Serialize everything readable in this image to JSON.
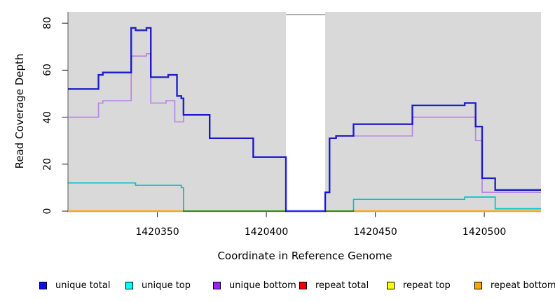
{
  "chart_data": {
    "type": "line",
    "subtype": "step-coverage",
    "title": "",
    "xlabel": "Coordinate in Reference Genome",
    "ylabel": "Read Coverage Depth",
    "x_ticks": [
      1420350,
      1420400,
      1420450,
      1420500
    ],
    "y_ticks": [
      0,
      20,
      40,
      60,
      80
    ],
    "x_range": [
      1420309,
      1420526
    ],
    "y_range": [
      0,
      85
    ],
    "grid": false,
    "panel_bg": "#d9d9d9",
    "legend_position": "bottom",
    "masked_region": {
      "from": 1420409,
      "to": 1420427,
      "fill": "#ffffff",
      "top_border": "#999999"
    },
    "series": [
      {
        "name": "unique total",
        "line_color": "#2626e8",
        "legend_color": "#0d0df0",
        "line_width": 2.4,
        "steps": [
          [
            1420309,
            52
          ],
          [
            1420323,
            58
          ],
          [
            1420325,
            59
          ],
          [
            1420338,
            78
          ],
          [
            1420340,
            77
          ],
          [
            1420345,
            78
          ],
          [
            1420347,
            57
          ],
          [
            1420355,
            58
          ],
          [
            1420359,
            49
          ],
          [
            1420361,
            48
          ],
          [
            1420362,
            41
          ],
          [
            1420374,
            31
          ],
          [
            1420394,
            23
          ],
          [
            1420409,
            0
          ],
          [
            1420427,
            8
          ],
          [
            1420429,
            31
          ],
          [
            1420432,
            32
          ],
          [
            1420440,
            37
          ],
          [
            1420467,
            45
          ],
          [
            1420491,
            46
          ],
          [
            1420496,
            36
          ],
          [
            1420499,
            14
          ],
          [
            1420505,
            9
          ]
        ]
      },
      {
        "name": "unique top",
        "line_color": "#00e5f0",
        "legend_color": "#00ffff",
        "line_width": 1.7,
        "steps": [
          [
            1420309,
            12
          ],
          [
            1420340,
            11
          ],
          [
            1420361,
            10
          ],
          [
            1420362,
            0
          ],
          [
            1420440,
            5
          ],
          [
            1420491,
            6
          ],
          [
            1420505,
            1
          ]
        ]
      },
      {
        "name": "unique bottom",
        "line_color": "#ba85e3",
        "legend_color": "#a020f0",
        "line_width": 1.7,
        "steps": [
          [
            1420309,
            40
          ],
          [
            1420323,
            46
          ],
          [
            1420325,
            47
          ],
          [
            1420338,
            66
          ],
          [
            1420345,
            67
          ],
          [
            1420347,
            46
          ],
          [
            1420354,
            47
          ],
          [
            1420358,
            38
          ],
          [
            1420362,
            41
          ],
          [
            1420374,
            31
          ],
          [
            1420394,
            23
          ],
          [
            1420409,
            0
          ],
          [
            1420427,
            8
          ],
          [
            1420429,
            31
          ],
          [
            1420432,
            32
          ],
          [
            1420467,
            40
          ],
          [
            1420496,
            30
          ],
          [
            1420499,
            8
          ]
        ]
      },
      {
        "name": "repeat total",
        "line_color": "#e00000",
        "legend_color": "#f00000",
        "line_width": 1.5,
        "steps": [
          [
            1420309,
            0
          ]
        ]
      },
      {
        "name": "repeat top",
        "line_color": "#ffff00",
        "legend_color": "#ffff00",
        "line_width": 1.5,
        "steps": [
          [
            1420309,
            0
          ]
        ]
      },
      {
        "name": "repeat bottom",
        "line_color": "#ffa512",
        "legend_color": "#ffa500",
        "line_width": 2.2,
        "steps": [
          [
            1420309,
            0
          ]
        ]
      }
    ]
  }
}
